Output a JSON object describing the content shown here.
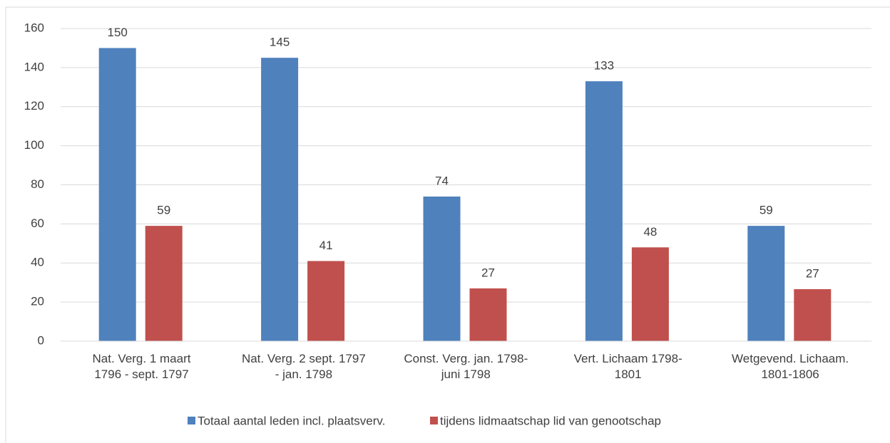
{
  "chart_data": {
    "type": "bar",
    "categories": [
      "Nat. Verg. 1 maart\n1796 - sept. 1797",
      "Nat. Verg. 2 sept. 1797\n- jan. 1798",
      "Const. Verg. jan. 1798-\njuni 1798",
      "Vert. Lichaam 1798-\n1801",
      "Wetgevend. Lichaam.\n1801-1806"
    ],
    "series": [
      {
        "name": "Totaal aantal leden incl. plaatsverv.",
        "color": "#4f81bd",
        "values": [
          150,
          145,
          74,
          133,
          59
        ]
      },
      {
        "name": "tijdens lidmaatschap lid van genootschap",
        "color": "#c0504d",
        "values": [
          59,
          41,
          27,
          48,
          26.6
        ],
        "value_labels": [
          "59",
          "41",
          "27",
          "48",
          "27"
        ]
      }
    ],
    "ylim": [
      0,
      160
    ],
    "yticks": [
      0,
      20,
      40,
      60,
      80,
      100,
      120,
      140,
      160
    ],
    "grid": true,
    "legend": "bottom"
  }
}
